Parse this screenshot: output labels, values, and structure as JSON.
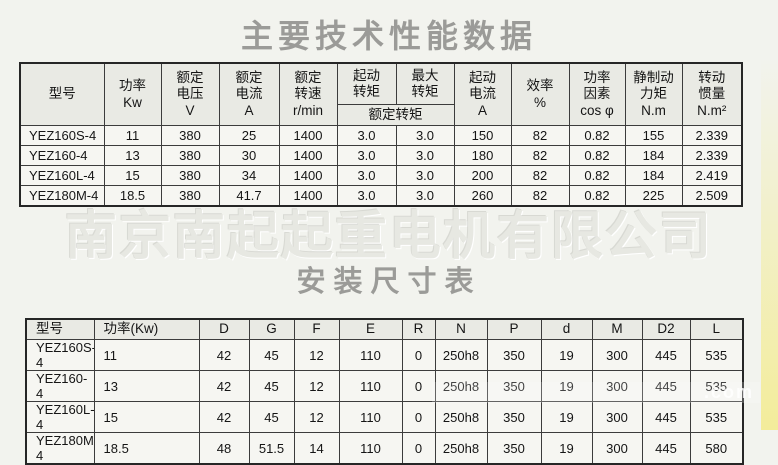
{
  "page": {
    "title1": "主要技术性能数据",
    "title2": "安装尺寸表",
    "watermark_company": "南京南起起重电机有限公司",
    "watermark_site_fragment": ".com"
  },
  "colors": {
    "page_bg": "#f2f3ee",
    "title_gray": "#9b9b98",
    "table_border": "#3c3c3c",
    "header_bg": "#e9eae4",
    "cell_bg": "#f6f6f2",
    "accent_yellow": "#f3ec96"
  },
  "performance_table": {
    "headers": {
      "model": "型号",
      "power": "功率\nKw",
      "rated_voltage": "额定\n电压\nV",
      "rated_current": "额定\n电流\nA",
      "rated_speed": "额定\n转速\nr/min",
      "starting_torque": "起动\n转矩",
      "max_torque": "最大\n转矩",
      "rated_torque_sub": "额定转矩",
      "starting_current": "起动\n电流\nA",
      "efficiency": "效率\n%",
      "power_factor": "功率\n因素\ncos φ",
      "static_braking_torque": "静制动\n力矩\nN.m",
      "rotational_inertia": "转动\n惯量\nN.m²"
    },
    "rows": [
      [
        "YEZ160S-4",
        "11",
        "380",
        "25",
        "1400",
        "3.0",
        "3.0",
        "150",
        "82",
        "0.82",
        "155",
        "2.339"
      ],
      [
        "YEZ160-4",
        "13",
        "380",
        "30",
        "1400",
        "3.0",
        "3.0",
        "180",
        "82",
        "0.82",
        "184",
        "2.339"
      ],
      [
        "YEZ160L-4",
        "15",
        "380",
        "34",
        "1400",
        "3.0",
        "3.0",
        "200",
        "82",
        "0.82",
        "184",
        "2.419"
      ],
      [
        "YEZ180M-4",
        "18.5",
        "380",
        "41.7",
        "1400",
        "3.0",
        "3.0",
        "260",
        "82",
        "0.82",
        "225",
        "2.509"
      ]
    ]
  },
  "dimension_table": {
    "headers": [
      "型号",
      "功率(Kw)",
      "D",
      "G",
      "F",
      "E",
      "R",
      "N",
      "P",
      "d",
      "M",
      "D2",
      "L"
    ],
    "rows": [
      [
        "YEZ160S-4",
        "11",
        "42",
        "45",
        "12",
        "110",
        "0",
        "250h8",
        "350",
        "19",
        "300",
        "445",
        "535"
      ],
      [
        "YEZ160-4",
        "13",
        "42",
        "45",
        "12",
        "110",
        "0",
        "250h8",
        "350",
        "19",
        "300",
        "445",
        "535"
      ],
      [
        "YEZ160L-4",
        "15",
        "42",
        "45",
        "12",
        "110",
        "0",
        "250h8",
        "350",
        "19",
        "300",
        "445",
        "535"
      ],
      [
        "YEZ180M-4",
        "18.5",
        "48",
        "51.5",
        "14",
        "110",
        "0",
        "250h8",
        "350",
        "19",
        "300",
        "445",
        "580"
      ]
    ]
  }
}
